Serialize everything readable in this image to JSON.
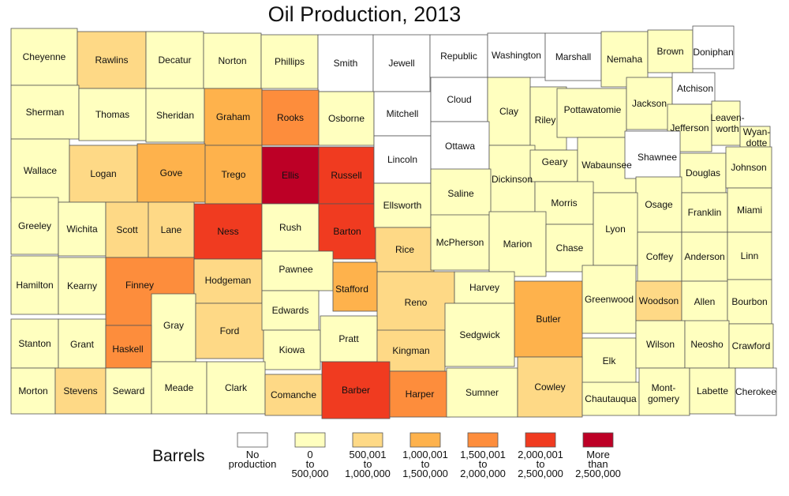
{
  "title": "Oil Production, 2013",
  "legend": {
    "title": "Barrels",
    "classes": [
      {
        "color": "#ffffff",
        "lines": [
          "No",
          "production"
        ]
      },
      {
        "color": "#ffffbf",
        "lines": [
          "0",
          "to",
          "500,000"
        ]
      },
      {
        "color": "#fed986",
        "lines": [
          "500,001",
          "to",
          "1,000,000"
        ]
      },
      {
        "color": "#feb24c",
        "lines": [
          "1,000,001",
          "to",
          "1,500,000"
        ]
      },
      {
        "color": "#fd8d3c",
        "lines": [
          "1,500,001",
          "to",
          "2,000,000"
        ]
      },
      {
        "color": "#f03b20",
        "lines": [
          "2,000,001",
          "to",
          "2,500,000"
        ]
      },
      {
        "color": "#bd0026",
        "lines": [
          "More",
          "than",
          "2,500,000"
        ]
      }
    ]
  },
  "counties": [
    {
      "name": "Cheyenne",
      "class": 1
    },
    {
      "name": "Rawlins",
      "class": 2
    },
    {
      "name": "Decatur",
      "class": 1
    },
    {
      "name": "Norton",
      "class": 1
    },
    {
      "name": "Phillips",
      "class": 1
    },
    {
      "name": "Smith",
      "class": 0
    },
    {
      "name": "Jewell",
      "class": 0
    },
    {
      "name": "Republic",
      "class": 0
    },
    {
      "name": "Washington",
      "class": 0
    },
    {
      "name": "Marshall",
      "class": 0
    },
    {
      "name": "Nemaha",
      "class": 1
    },
    {
      "name": "Brown",
      "class": 1
    },
    {
      "name": "Doniphan",
      "class": 0
    },
    {
      "name": "Sherman",
      "class": 1
    },
    {
      "name": "Thomas",
      "class": 1
    },
    {
      "name": "Sheridan",
      "class": 1
    },
    {
      "name": "Graham",
      "class": 3
    },
    {
      "name": "Rooks",
      "class": 4
    },
    {
      "name": "Osborne",
      "class": 1
    },
    {
      "name": "Mitchell",
      "class": 0
    },
    {
      "name": "Cloud",
      "class": 0
    },
    {
      "name": "Clay",
      "class": 1
    },
    {
      "name": "Riley",
      "class": 1
    },
    {
      "name": "Pottawatomie",
      "class": 1
    },
    {
      "name": "Jackson",
      "class": 1
    },
    {
      "name": "Atchison",
      "class": 0
    },
    {
      "name": "Jefferson",
      "class": 1
    },
    {
      "name": "Leaven-worth",
      "lines": [
        "Leaven-",
        "worth"
      ],
      "class": 1
    },
    {
      "name": "Wyan-dotte",
      "lines": [
        "Wyan-",
        "dotte"
      ],
      "class": 1
    },
    {
      "name": "Wallace",
      "class": 1
    },
    {
      "name": "Logan",
      "class": 2
    },
    {
      "name": "Gove",
      "class": 3
    },
    {
      "name": "Trego",
      "class": 3
    },
    {
      "name": "Ellis",
      "class": 6
    },
    {
      "name": "Russell",
      "class": 5
    },
    {
      "name": "Lincoln",
      "class": 0
    },
    {
      "name": "Ottawa",
      "class": 0
    },
    {
      "name": "Dickinson",
      "class": 1
    },
    {
      "name": "Geary",
      "class": 1
    },
    {
      "name": "Wabaunsee",
      "class": 1
    },
    {
      "name": "Shawnee",
      "class": 0
    },
    {
      "name": "Douglas",
      "class": 1
    },
    {
      "name": "Johnson",
      "class": 1
    },
    {
      "name": "Greeley",
      "class": 1
    },
    {
      "name": "Wichita",
      "class": 1
    },
    {
      "name": "Scott",
      "class": 2
    },
    {
      "name": "Lane",
      "class": 2
    },
    {
      "name": "Ness",
      "class": 5
    },
    {
      "name": "Rush",
      "class": 1
    },
    {
      "name": "Barton",
      "class": 5
    },
    {
      "name": "Ellsworth",
      "class": 1
    },
    {
      "name": "Saline",
      "class": 1
    },
    {
      "name": "Morris",
      "class": 1
    },
    {
      "name": "Osage",
      "class": 1
    },
    {
      "name": "Franklin",
      "class": 1
    },
    {
      "name": "Miami",
      "class": 1
    },
    {
      "name": "Hamilton",
      "class": 1
    },
    {
      "name": "Kearny",
      "class": 1
    },
    {
      "name": "Finney",
      "class": 4
    },
    {
      "name": "Hodgeman",
      "class": 2
    },
    {
      "name": "Pawnee",
      "class": 1
    },
    {
      "name": "Rice",
      "class": 2
    },
    {
      "name": "McPherson",
      "class": 1
    },
    {
      "name": "Marion",
      "class": 1
    },
    {
      "name": "Chase",
      "class": 1
    },
    {
      "name": "Lyon",
      "class": 1
    },
    {
      "name": "Coffey",
      "class": 1
    },
    {
      "name": "Anderson",
      "class": 1
    },
    {
      "name": "Linn",
      "class": 1
    },
    {
      "name": "Gray",
      "class": 1
    },
    {
      "name": "Ford",
      "class": 2
    },
    {
      "name": "Edwards",
      "class": 1
    },
    {
      "name": "Stafford",
      "class": 3
    },
    {
      "name": "Reno",
      "class": 2
    },
    {
      "name": "Harvey",
      "class": 1
    },
    {
      "name": "Butler",
      "class": 3
    },
    {
      "name": "Greenwood",
      "class": 1
    },
    {
      "name": "Woodson",
      "class": 2
    },
    {
      "name": "Allen",
      "class": 1
    },
    {
      "name": "Bourbon",
      "class": 1
    },
    {
      "name": "Stanton",
      "class": 1
    },
    {
      "name": "Grant",
      "class": 1
    },
    {
      "name": "Haskell",
      "class": 4
    },
    {
      "name": "Kiowa",
      "class": 1
    },
    {
      "name": "Pratt",
      "class": 1
    },
    {
      "name": "Kingman",
      "class": 2
    },
    {
      "name": "Sedgwick",
      "class": 1
    },
    {
      "name": "Elk",
      "class": 1
    },
    {
      "name": "Wilson",
      "class": 1
    },
    {
      "name": "Neosho",
      "class": 1
    },
    {
      "name": "Crawford",
      "class": 1
    },
    {
      "name": "Morton",
      "class": 1
    },
    {
      "name": "Stevens",
      "class": 2
    },
    {
      "name": "Seward",
      "class": 1
    },
    {
      "name": "Meade",
      "class": 1
    },
    {
      "name": "Clark",
      "class": 1
    },
    {
      "name": "Comanche",
      "class": 2
    },
    {
      "name": "Barber",
      "class": 5
    },
    {
      "name": "Harper",
      "class": 4
    },
    {
      "name": "Sumner",
      "class": 1
    },
    {
      "name": "Cowley",
      "class": 2
    },
    {
      "name": "Chautauqua",
      "class": 1
    },
    {
      "name": "Mont-gomery",
      "lines": [
        "Mont-",
        "gomery"
      ],
      "class": 1
    },
    {
      "name": "Labette",
      "class": 1
    },
    {
      "name": "Cherokee",
      "class": 0
    }
  ]
}
